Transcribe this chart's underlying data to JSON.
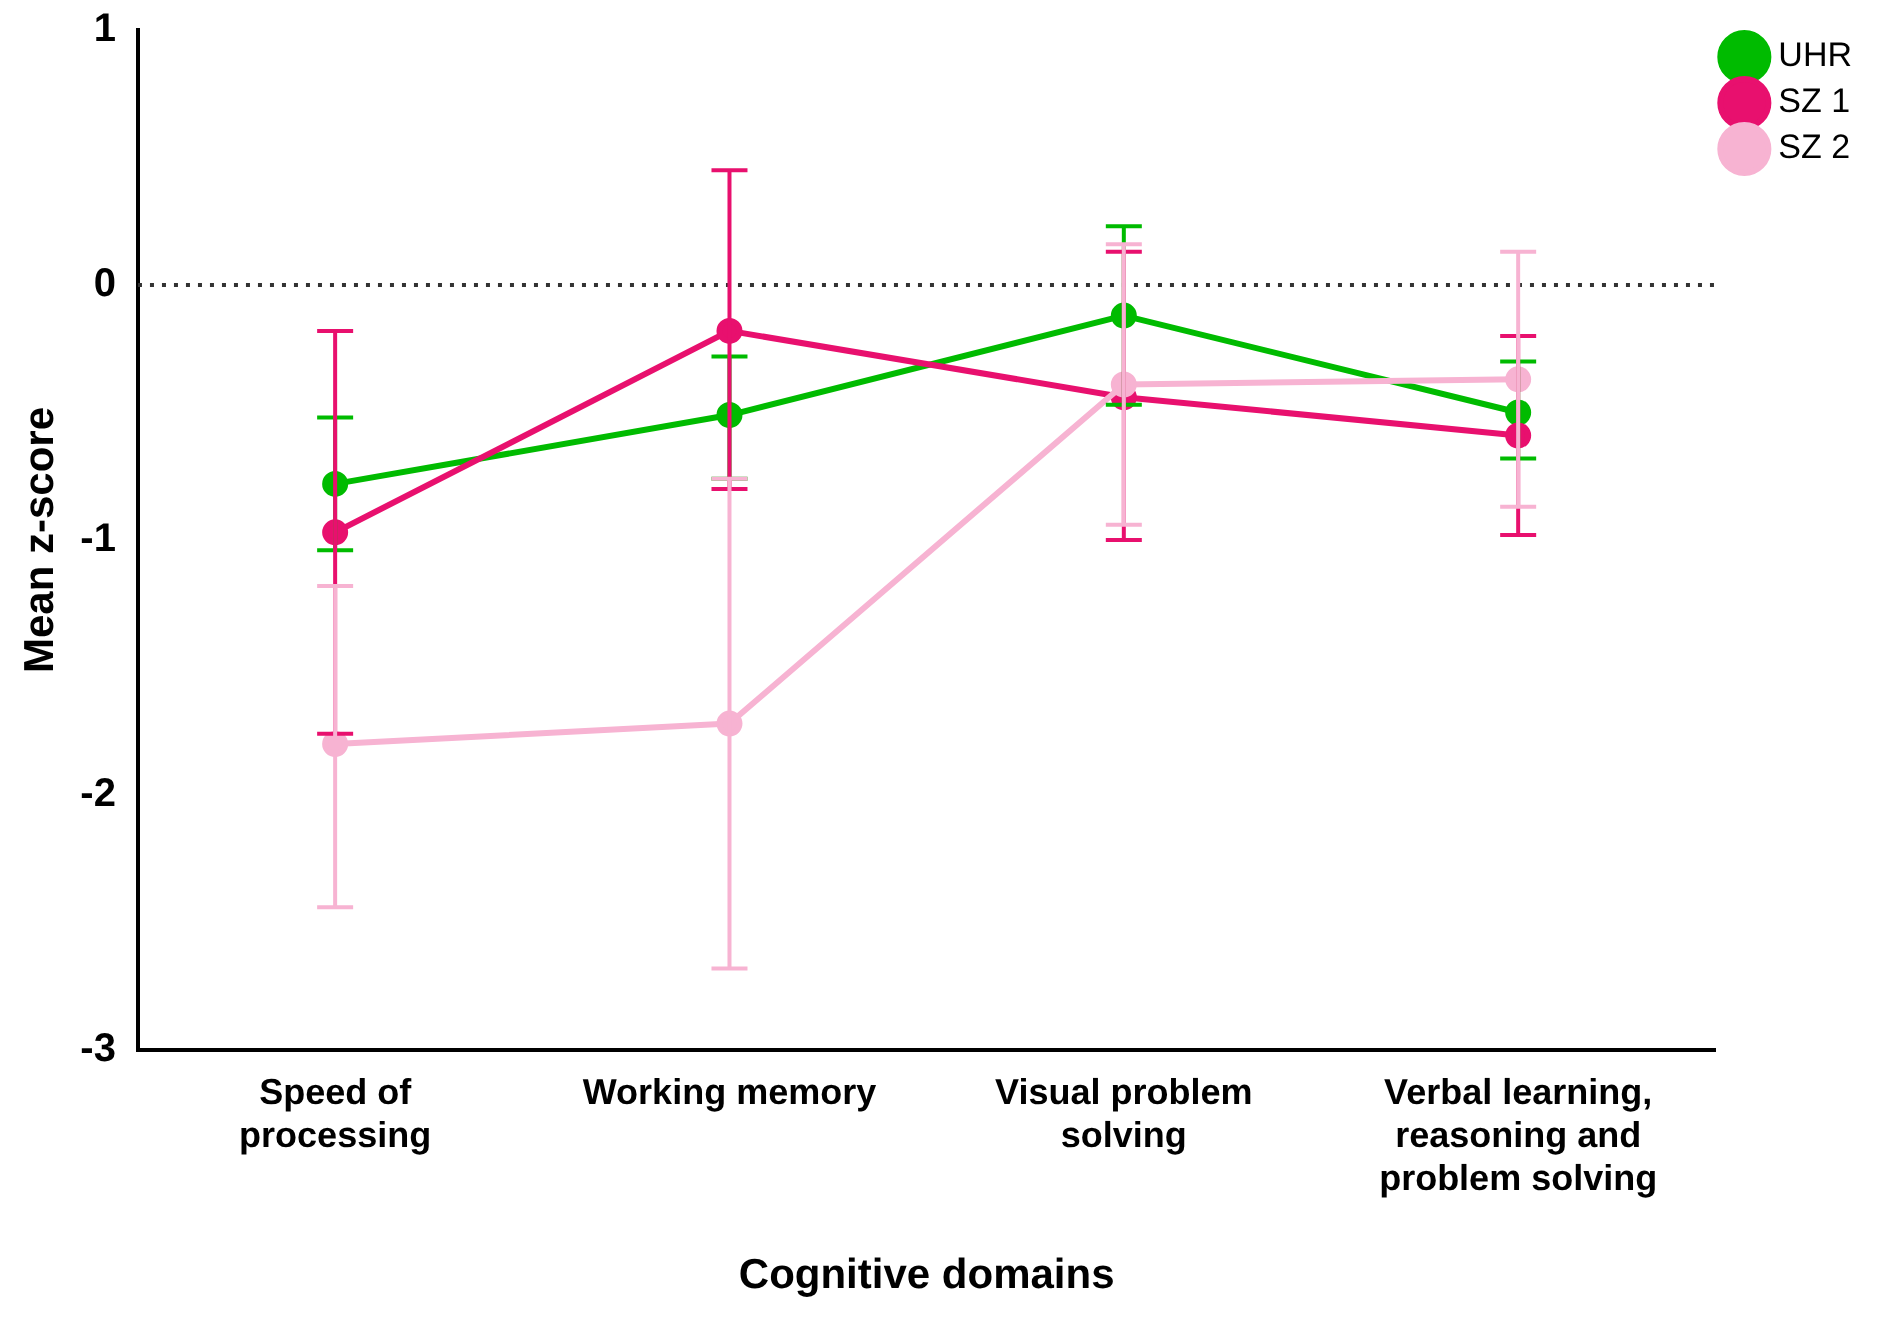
{
  "chart_data": {
    "type": "line",
    "xlabel": "Cognitive domains",
    "ylabel": "Mean z-score",
    "categories": [
      "Speed of processing",
      "Working memory",
      "Visual problem solving",
      "Verbal learning, reasoning and problem solving"
    ],
    "series": [
      {
        "name": "UHR",
        "color": "#00bb00",
        "values": [
          -0.78,
          -0.51,
          -0.12,
          -0.5
        ],
        "errors": [
          [
            -1.04,
            -0.52
          ],
          [
            -0.76,
            -0.28
          ],
          [
            -0.47,
            0.23
          ],
          [
            -0.68,
            -0.3
          ]
        ]
      },
      {
        "name": "SZ 1",
        "color": "#e8106e",
        "values": [
          -0.97,
          -0.18,
          -0.44,
          -0.59
        ],
        "errors": [
          [
            -1.76,
            -0.18
          ],
          [
            -0.8,
            0.45
          ],
          [
            -1.0,
            0.13
          ],
          [
            -0.98,
            -0.2
          ]
        ]
      },
      {
        "name": "SZ 2",
        "color": "#f7b3d2",
        "values": [
          -1.8,
          -1.72,
          -0.39,
          -0.37
        ],
        "errors": [
          [
            -2.44,
            -1.18
          ],
          [
            -2.68,
            -0.76
          ],
          [
            -0.94,
            0.16
          ],
          [
            -0.87,
            0.13
          ]
        ]
      }
    ],
    "ylim": [
      -3,
      1
    ],
    "yticks": [
      -3,
      -2,
      -1,
      0,
      1
    ],
    "grid": false,
    "legend": "top right",
    "marker": "circle",
    "line_style": "solid",
    "ref_lines": [
      {
        "axis": "y",
        "value": 0,
        "line_style": "dotted",
        "color": "#333333"
      }
    ]
  }
}
